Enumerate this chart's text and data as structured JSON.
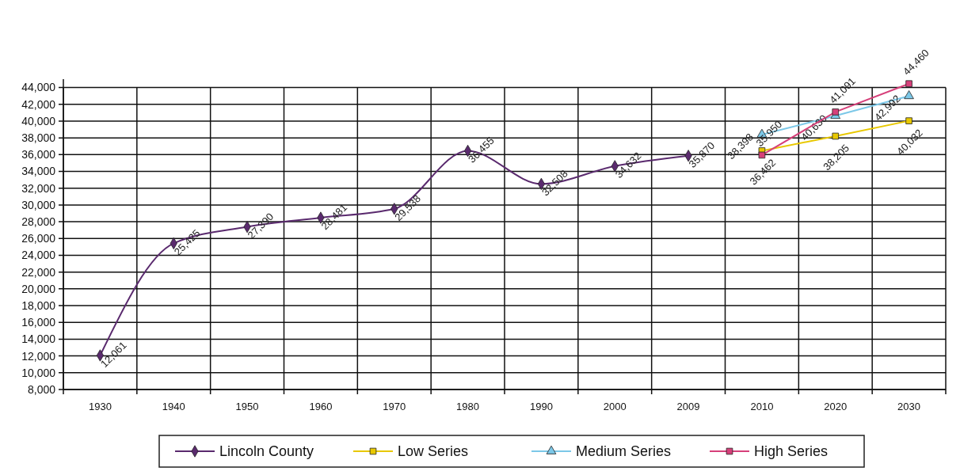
{
  "chart_data": {
    "type": "line",
    "categories": [
      "1930",
      "1940",
      "1950",
      "1960",
      "1970",
      "1980",
      "1990",
      "2000",
      "2009",
      "2010",
      "2020",
      "2030"
    ],
    "series": [
      {
        "name": "Lincoln County",
        "color": "#5a2a6e",
        "marker": "diamond",
        "values": [
          12061,
          25425,
          27390,
          28481,
          29538,
          36455,
          32508,
          34632,
          35870,
          null,
          null,
          null
        ],
        "value_labels": [
          "12,061",
          "25,425",
          "27,390",
          "28,481",
          "29,538",
          "36,455",
          "32,508",
          "34,632",
          "35,870",
          null,
          null,
          null
        ]
      },
      {
        "name": "Low  Series",
        "color": "#e8c800",
        "marker": "square",
        "values": [
          null,
          null,
          null,
          null,
          null,
          null,
          null,
          null,
          null,
          36462,
          38205,
          40032
        ],
        "value_labels": [
          null,
          null,
          null,
          null,
          null,
          null,
          null,
          null,
          null,
          "36,462",
          "38,205",
          "40,032"
        ]
      },
      {
        "name": "Medium Series",
        "color": "#7cc8e8",
        "marker": "triangle",
        "values": [
          null,
          null,
          null,
          null,
          null,
          null,
          null,
          null,
          null,
          38398,
          40630,
          42992
        ],
        "value_labels": [
          null,
          null,
          null,
          null,
          null,
          null,
          null,
          null,
          null,
          "38,398",
          "40,630",
          "42,992"
        ]
      },
      {
        "name": "High Series",
        "color": "#d6407a",
        "marker": "square",
        "values": [
          null,
          null,
          null,
          null,
          null,
          null,
          null,
          null,
          null,
          35950,
          41091,
          44460
        ],
        "value_labels": [
          null,
          null,
          null,
          null,
          null,
          null,
          null,
          null,
          null,
          "35,950",
          "41,091",
          "44,460"
        ]
      }
    ],
    "ylim": [
      8000,
      45000
    ],
    "yticks": [
      {
        "value": 8000,
        "label": "8,000"
      },
      {
        "value": 10000,
        "label": "10,000"
      },
      {
        "value": 12000,
        "label": "12,000"
      },
      {
        "value": 14000,
        "label": "14,000"
      },
      {
        "value": 16000,
        "label": "16,000"
      },
      {
        "value": 18000,
        "label": "18,000"
      },
      {
        "value": 20000,
        "label": "20,000"
      },
      {
        "value": 22000,
        "label": "22,000"
      },
      {
        "value": 24000,
        "label": "24,000"
      },
      {
        "value": 26000,
        "label": "26,000"
      },
      {
        "value": 28000,
        "label": "28,000"
      },
      {
        "value": 30000,
        "label": "30,000"
      },
      {
        "value": 32000,
        "label": "32,000"
      },
      {
        "value": 34000,
        "label": "34,000"
      },
      {
        "value": 36000,
        "label": "36,000"
      },
      {
        "value": 38000,
        "label": "38,000"
      },
      {
        "value": 40000,
        "label": "40,000"
      },
      {
        "value": 42000,
        "label": "42,000"
      },
      {
        "value": 44000,
        "label": "44,000"
      }
    ],
    "grid": true,
    "legend": "bottom"
  }
}
